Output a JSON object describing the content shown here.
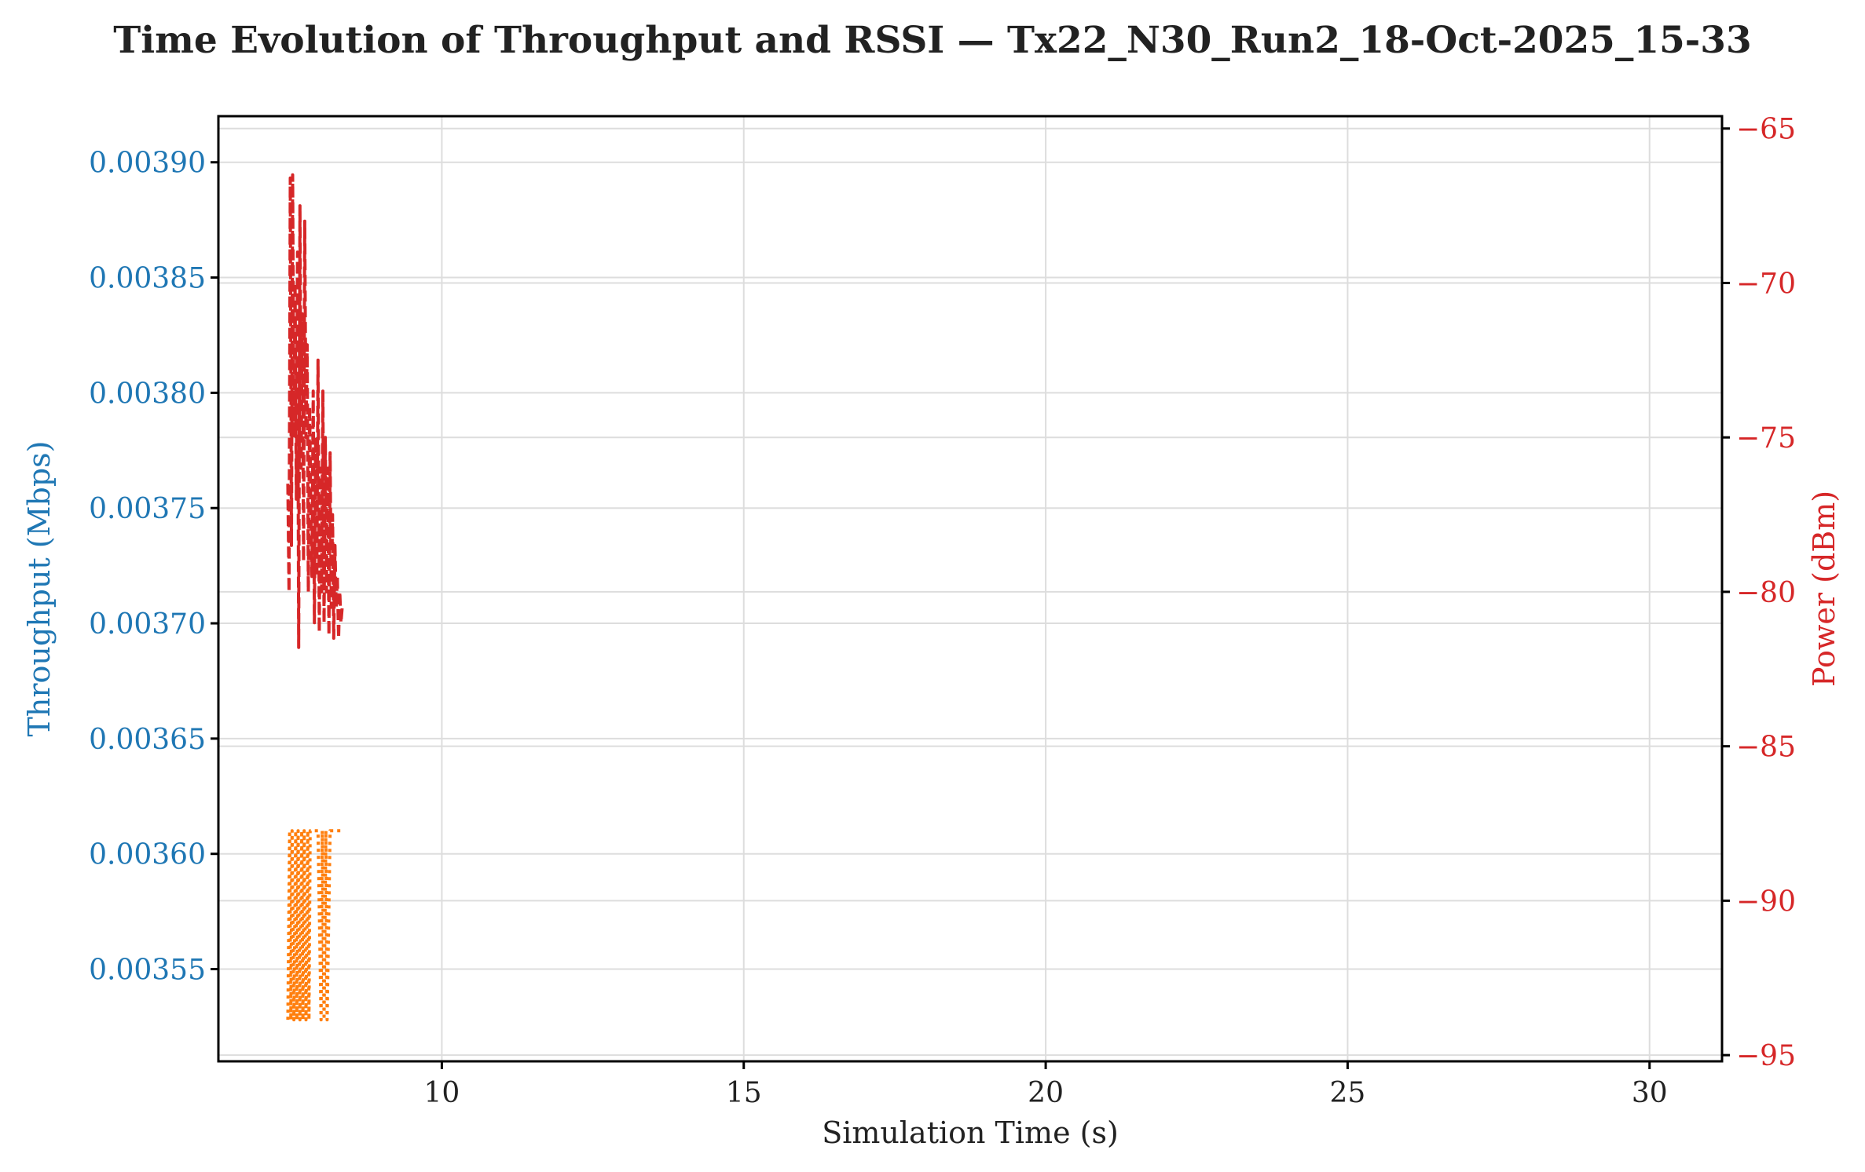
{
  "chart_data": {
    "type": "line",
    "title": "Time Evolution of Throughput and RSSI — Tx22_N30_Run2_18-Oct-2025_15-33",
    "xlabel": "Simulation Time (s)",
    "ylabel_left": "Throughput (Mbps)",
    "ylabel_right": "Power (dBm)",
    "xlim": [
      6.3,
      31.2
    ],
    "ylim_left": [
      0.00351,
      0.00392
    ],
    "ylim_right": [
      -95.2,
      -64.6
    ],
    "x_ticks": [
      10,
      15,
      20,
      25,
      30
    ],
    "x_tick_labels": [
      "10",
      "15",
      "20",
      "25",
      "30"
    ],
    "y_left_ticks": [
      0.00355,
      0.0036,
      0.00365,
      0.0037,
      0.00375,
      0.0038,
      0.00385,
      0.0039
    ],
    "y_left_tick_labels": [
      "0.00355",
      "0.00360",
      "0.00365",
      "0.00370",
      "0.00375",
      "0.00380",
      "0.00385",
      "0.00390"
    ],
    "y_right_ticks": [
      -95,
      -90,
      -85,
      -80,
      -75,
      -70,
      -65
    ],
    "y_right_tick_labels": [
      "−95",
      "−90",
      "−85",
      "−80",
      "−75",
      "−70",
      "−65"
    ],
    "grid": true,
    "colors": {
      "left_axis": "#1f77b4",
      "right_axis": "#d62728",
      "throughput": "#ff7f0e",
      "rssi": "#d62728"
    },
    "series": [
      {
        "axis": "left",
        "style": "dotted",
        "x": [
          7.45,
          7.48,
          7.5,
          7.52,
          7.55,
          7.58,
          7.6,
          7.62,
          7.65,
          7.68,
          7.7,
          7.72,
          7.75,
          7.78,
          7.8,
          7.82,
          7.85,
          7.95,
          8.0,
          8.02,
          8.05,
          8.08,
          8.1,
          8.15,
          8.2,
          8.25,
          8.3,
          8.35
        ],
        "values": [
          0.003528,
          0.00361,
          0.003528,
          0.00361,
          0.003528,
          0.00361,
          0.003528,
          0.00361,
          0.003528,
          0.00361,
          0.003528,
          0.00361,
          0.003528,
          0.00361,
          0.003528,
          0.00361,
          0.00361,
          0.00361,
          0.003528,
          0.00361,
          0.003528,
          0.00361,
          0.003528,
          0.00361,
          0.00361,
          0.00361,
          0.00361,
          0.00361
        ]
      },
      {
        "axis": "right",
        "style": "dashed",
        "x": [
          7.45,
          7.47,
          7.49,
          7.51,
          7.53,
          7.55,
          7.57,
          7.59,
          7.61,
          7.63,
          7.65,
          7.67,
          7.69,
          7.71,
          7.73,
          7.75,
          7.77,
          7.79,
          7.81,
          7.83,
          7.85,
          7.87,
          7.89,
          7.91,
          7.93,
          7.95,
          7.97,
          7.99,
          8.01,
          8.03,
          8.05,
          8.07,
          8.09,
          8.11,
          8.13,
          8.15,
          8.17,
          8.19,
          8.21,
          8.23,
          8.25,
          8.27,
          8.29,
          8.31,
          8.33,
          8.35
        ],
        "values": [
          -76.5,
          -80,
          -66.6,
          -78.5,
          -66.5,
          -75,
          -70,
          -77,
          -69,
          -81.8,
          -67.5,
          -76,
          -71,
          -79,
          -68,
          -75,
          -72,
          -80,
          -74,
          -77,
          -79.5,
          -73.5,
          -81,
          -75,
          -79.5,
          -72.5,
          -81.3,
          -76,
          -80,
          -73.5,
          -81,
          -75,
          -80,
          -76,
          -81.4,
          -75.5,
          -80.5,
          -77.5,
          -81.5,
          -78.5,
          -80.5,
          -79.5,
          -81.5,
          -80,
          -81,
          -80.5
        ]
      }
    ]
  }
}
